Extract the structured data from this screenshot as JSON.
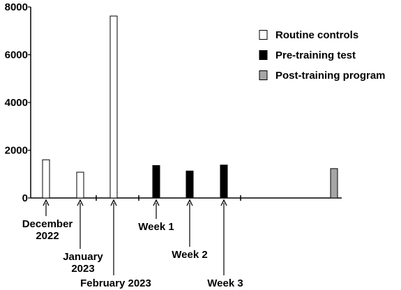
{
  "chart_data": {
    "type": "bar",
    "title": "",
    "xlabel": "",
    "ylabel": "",
    "ylim": [
      0,
      8000
    ],
    "yticks": [
      0,
      2000,
      4000,
      6000,
      8000
    ],
    "grid": false,
    "legend_position": "top-right",
    "series": [
      {
        "name": "Routine controls",
        "color": "#ffffff"
      },
      {
        "name": "Pre-training test",
        "color": "#000000"
      },
      {
        "name": "Post-training program",
        "color": "#a6a6a6"
      }
    ],
    "bars": [
      {
        "series": 0,
        "value": 1600
      },
      {
        "series": 0,
        "value": 1080
      },
      {
        "series": 0,
        "value": 7620
      },
      {
        "series": 1,
        "value": 1360
      },
      {
        "series": 1,
        "value": 1130
      },
      {
        "series": 1,
        "value": 1380
      },
      {
        "series": 2,
        "value": 1230
      }
    ],
    "annotations": [
      {
        "bar": 0,
        "lines": [
          "December",
          "2022"
        ]
      },
      {
        "bar": 1,
        "lines": [
          "January",
          "2023"
        ]
      },
      {
        "bar": 2,
        "lines": [
          "February 2023"
        ]
      },
      {
        "bar": 3,
        "lines": [
          "Week 1"
        ]
      },
      {
        "bar": 4,
        "lines": [
          "Week 2"
        ]
      },
      {
        "bar": 5,
        "lines": [
          "Week 3"
        ]
      }
    ]
  }
}
